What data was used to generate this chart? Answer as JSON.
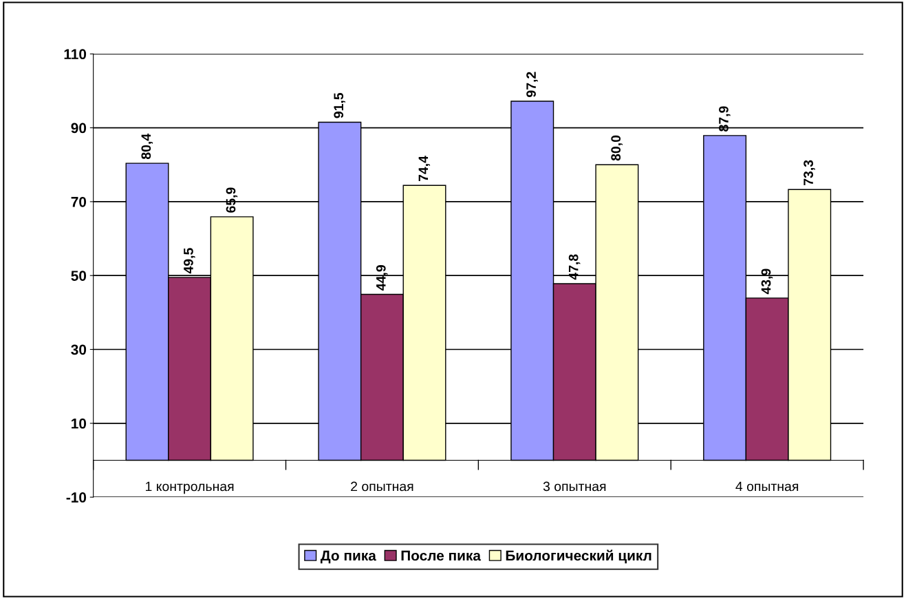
{
  "chart_data": {
    "type": "bar",
    "categories": [
      "1 контрольная",
      "2 опытная",
      "3 опытная",
      "4 опытная"
    ],
    "series": [
      {
        "name": "До пика",
        "color": "#9999ff",
        "values": [
          80.4,
          91.5,
          97.2,
          87.9
        ],
        "value_labels": [
          "80,4",
          "91,5",
          "97,2",
          "87,9"
        ]
      },
      {
        "name": "После пика",
        "color": "#993366",
        "values": [
          49.5,
          44.9,
          47.8,
          43.9
        ],
        "value_labels": [
          "49,5",
          "44,9",
          "47,8",
          "43,9"
        ]
      },
      {
        "name": "Биологический цикл",
        "color": "#ffffcc",
        "values": [
          65.9,
          74.4,
          80.0,
          73.3
        ],
        "value_labels": [
          "65,9",
          "74,4",
          "80,0",
          "73,3"
        ]
      }
    ],
    "ylim": [
      -10,
      110
    ],
    "yticks": [
      -10,
      10,
      30,
      50,
      70,
      90,
      110
    ],
    "grid": "y",
    "legend": "bottom"
  }
}
